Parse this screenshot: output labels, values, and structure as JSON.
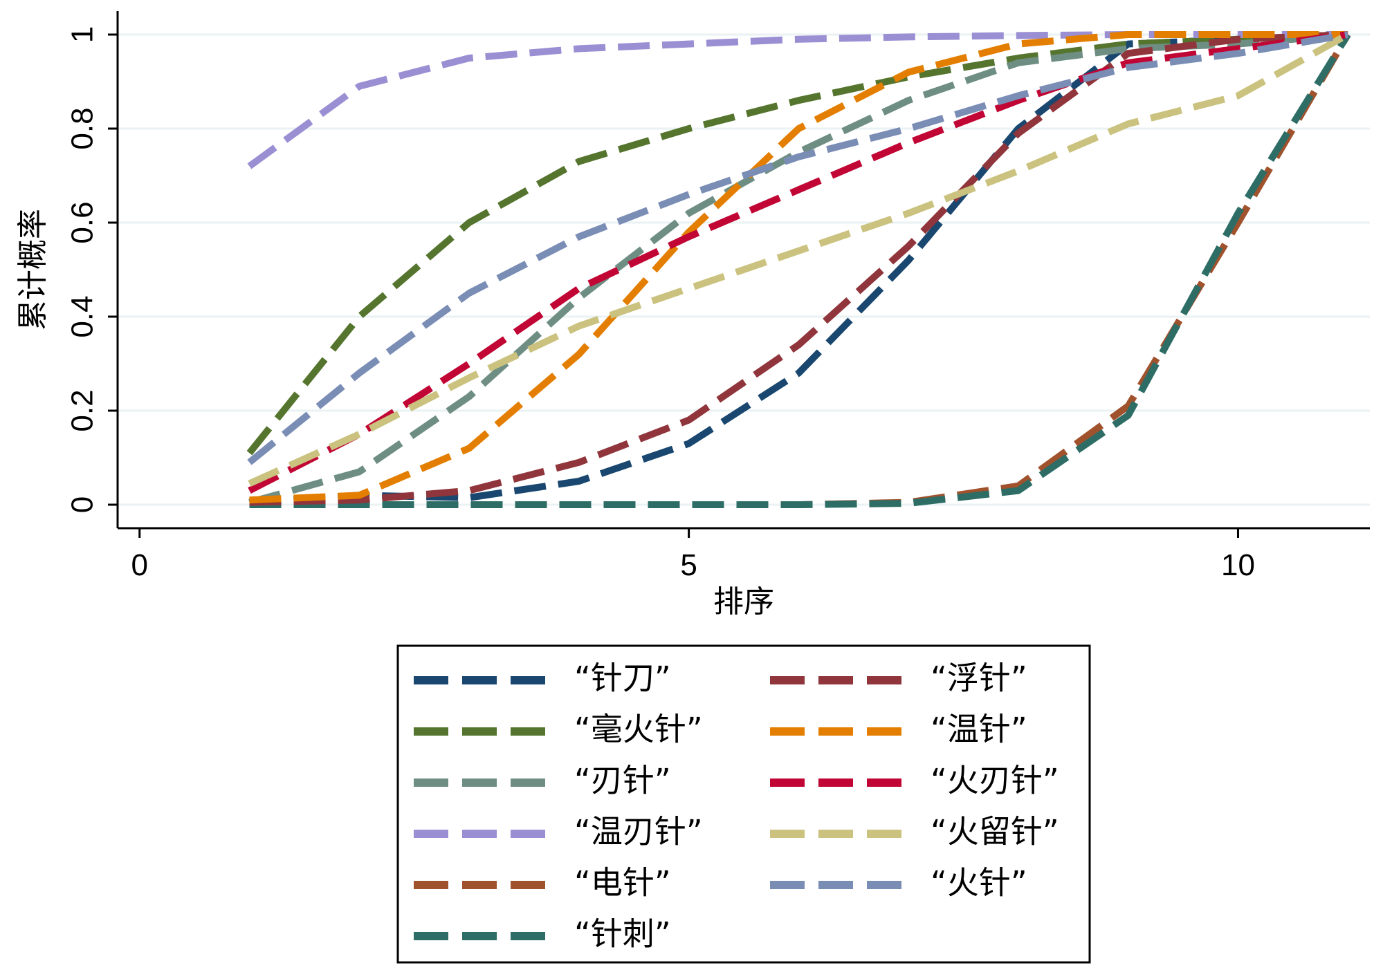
{
  "chart_data": {
    "type": "line",
    "xlabel": "排序",
    "ylabel": "累计概率",
    "xlim": [
      -0.2,
      11.2
    ],
    "ylim": [
      -0.05,
      1.05
    ],
    "xticks": [
      0,
      5,
      10
    ],
    "yticks": [
      0,
      0.2,
      0.4,
      0.6,
      0.8,
      1
    ],
    "xtick_labels": [
      "0",
      "5",
      "10"
    ],
    "ytick_labels": [
      "0",
      "0.2",
      "0.4",
      "0.6",
      "0.8",
      "1"
    ],
    "grid": true,
    "legend_position": "bottom",
    "x": [
      1,
      2,
      3,
      4,
      5,
      6,
      7,
      8,
      9,
      10,
      11
    ],
    "series": [
      {
        "name": "“针刀”",
        "color": "#1a476f",
        "values": [
          0.005,
          0.02,
          0.015,
          0.05,
          0.13,
          0.28,
          0.52,
          0.8,
          0.98,
          0.99,
          1.0
        ]
      },
      {
        "name": "“毫火针”",
        "color": "#55752f",
        "values": [
          0.11,
          0.4,
          0.6,
          0.73,
          0.8,
          0.86,
          0.91,
          0.95,
          0.98,
          0.99,
          1.0
        ]
      },
      {
        "name": "“刃针”",
        "color": "#6e8e84",
        "values": [
          0.005,
          0.07,
          0.23,
          0.44,
          0.62,
          0.75,
          0.86,
          0.94,
          0.97,
          0.98,
          1.0
        ]
      },
      {
        "name": "“温刃针”",
        "color": "#9b8fd4",
        "values": [
          0.72,
          0.89,
          0.95,
          0.97,
          0.98,
          0.99,
          0.995,
          0.998,
          1.0,
          1.0,
          1.0
        ]
      },
      {
        "name": "“电针”",
        "color": "#a0522d",
        "values": [
          0.0,
          0.0,
          0.0,
          0.0,
          0.0,
          0.0,
          0.005,
          0.04,
          0.21,
          0.6,
          1.0
        ]
      },
      {
        "name": "“针刺”",
        "color": "#2d6d66",
        "values": [
          0.0,
          0.0,
          0.0,
          0.0,
          0.0,
          0.0,
          0.003,
          0.03,
          0.19,
          0.62,
          1.0
        ]
      },
      {
        "name": "“浮针”",
        "color": "#90353b",
        "values": [
          0.005,
          0.01,
          0.03,
          0.09,
          0.18,
          0.34,
          0.55,
          0.79,
          0.96,
          0.99,
          1.0
        ]
      },
      {
        "name": "“温针”",
        "color": "#e37e00",
        "values": [
          0.01,
          0.02,
          0.12,
          0.32,
          0.58,
          0.8,
          0.92,
          0.98,
          1.0,
          1.0,
          1.0
        ]
      },
      {
        "name": "“火刃针”",
        "color": "#c10534",
        "values": [
          0.03,
          0.15,
          0.3,
          0.46,
          0.57,
          0.67,
          0.77,
          0.86,
          0.94,
          0.97,
          1.0
        ]
      },
      {
        "name": "“火留针”",
        "color": "#cac27e",
        "values": [
          0.045,
          0.15,
          0.27,
          0.38,
          0.46,
          0.54,
          0.62,
          0.71,
          0.81,
          0.87,
          1.0
        ]
      },
      {
        "name": "“火针”",
        "color": "#7a8db5",
        "values": [
          0.09,
          0.28,
          0.45,
          0.57,
          0.66,
          0.74,
          0.8,
          0.87,
          0.93,
          0.96,
          1.0
        ]
      }
    ],
    "grid_color": "#eaf2f3"
  }
}
